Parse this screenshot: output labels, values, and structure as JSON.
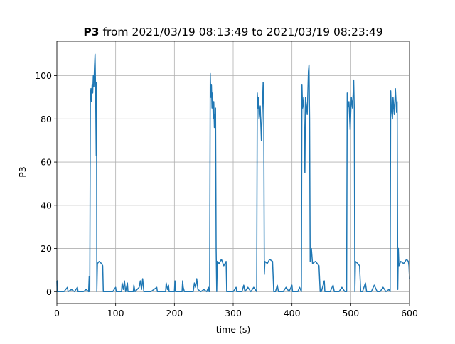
{
  "chart_data": {
    "type": "line",
    "title_main": "P3",
    "title_detail": "from 2021/03/19 08:13:49 to 2021/03/19 08:23:49",
    "x_label": "time (s)",
    "y_label": "P3",
    "xlim": [
      0,
      600
    ],
    "ylim": [
      -5.5,
      116
    ],
    "xticks": [
      0,
      100,
      200,
      300,
      400,
      500,
      600
    ],
    "yticks": [
      0,
      20,
      40,
      60,
      80,
      100
    ],
    "grid": true,
    "series": [
      {
        "color": "#1f77b4",
        "x": [
          0,
          0.5,
          1,
          1.5,
          12,
          18,
          19,
          25,
          30,
          35,
          36,
          45,
          50,
          54,
          55,
          55.5,
          56,
          57,
          58,
          59,
          60,
          61,
          62,
          63,
          64,
          65,
          66,
          67,
          67.5,
          68,
          69,
          72,
          76,
          78,
          79,
          80,
          95,
          100,
          101,
          110,
          111,
          113,
          115,
          117,
          120,
          121,
          130,
          131,
          133,
          140,
          142,
          144,
          146,
          148,
          160,
          170,
          171,
          185,
          186,
          188,
          190,
          191,
          200,
          201,
          202,
          213,
          214,
          215,
          217,
          232,
          234,
          236,
          238,
          240,
          245,
          250,
          255,
          258,
          259,
          260,
          261,
          262,
          263,
          264,
          265,
          266,
          267,
          268,
          270,
          271,
          272,
          273,
          276,
          280,
          284,
          288,
          289,
          290,
          300,
          305,
          306,
          315,
          318,
          320,
          325,
          330,
          335,
          340,
          341,
          342,
          343,
          344,
          346,
          348,
          350,
          351,
          352,
          353,
          354,
          358,
          362,
          367,
          369,
          372,
          375,
          377,
          385,
          390,
          395,
          400,
          401,
          410,
          413,
          416,
          417,
          418,
          420,
          422,
          423,
          426,
          428,
          429,
          430,
          431,
          433,
          435,
          440,
          446,
          448,
          450,
          455,
          456,
          465,
          470,
          472,
          480,
          485,
          490,
          493,
          494,
          495,
          497,
          499,
          501,
          503,
          505,
          506,
          507,
          508,
          512,
          515,
          517,
          520,
          525,
          527,
          535,
          540,
          545,
          550,
          555,
          560,
          565,
          567,
          568,
          569,
          571,
          572,
          574,
          576,
          578,
          579,
          580,
          581,
          582,
          585,
          590,
          595,
          598,
          599,
          600
        ],
        "values": [
          5,
          0,
          5,
          0,
          0,
          2,
          0,
          1,
          0,
          2,
          0,
          0,
          1,
          0,
          7,
          0,
          0,
          90,
          94,
          88,
          96,
          92,
          100,
          95,
          104,
          110,
          92,
          63,
          97,
          0,
          13,
          14,
          13,
          12,
          0,
          0,
          0,
          2,
          0,
          0,
          4,
          1,
          5,
          0,
          4,
          0,
          0,
          3,
          0,
          2,
          5,
          1,
          6,
          0,
          0,
          2,
          0,
          0,
          4,
          1,
          3,
          0,
          0,
          5,
          0,
          0,
          5,
          2,
          0,
          0,
          4,
          2,
          6,
          1,
          0,
          1,
          0,
          2,
          0,
          0,
          101,
          90,
          96,
          85,
          92,
          80,
          88,
          76,
          85,
          20,
          0,
          14,
          13,
          15,
          12,
          14,
          0,
          0,
          0,
          2,
          0,
          0,
          3,
          0,
          2,
          0,
          2,
          0,
          92,
          85,
          90,
          80,
          86,
          70,
          88,
          97,
          84,
          8,
          14,
          13,
          15,
          14,
          0,
          0,
          3,
          0,
          0,
          2,
          0,
          3,
          0,
          0,
          2,
          0,
          96,
          85,
          90,
          55,
          90,
          82,
          102,
          105,
          80,
          14,
          20,
          13,
          14,
          12,
          0,
          0,
          5,
          0,
          0,
          3,
          0,
          0,
          2,
          0,
          0,
          92,
          85,
          88,
          75,
          90,
          85,
          98,
          85,
          0,
          14,
          13,
          12,
          0,
          0,
          4,
          0,
          0,
          3,
          0,
          0,
          2,
          0,
          1,
          0,
          93,
          85,
          80,
          90,
          82,
          94,
          83,
          88,
          1,
          20,
          12,
          14,
          13,
          15,
          14,
          12,
          6
        ]
      }
    ]
  }
}
